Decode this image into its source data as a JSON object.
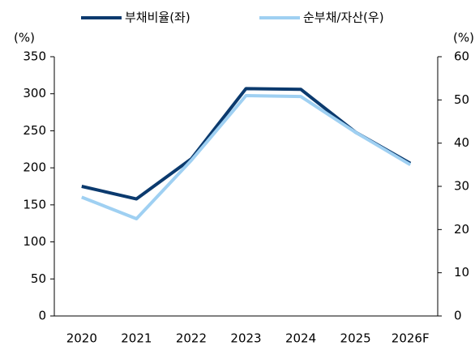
{
  "chart_data": {
    "type": "line",
    "categories": [
      "2020",
      "2021",
      "2022",
      "2023",
      "2024",
      "2025",
      "2026F"
    ],
    "series": [
      {
        "name": "부채비율(좌)",
        "color": "#0b3a6e",
        "values": [
          175,
          158,
          212,
          307,
          306,
          248,
          206
        ]
      },
      {
        "name": "순부채/자산(우)",
        "color": "#9fd0f2",
        "axis": "y2",
        "values": [
          27.5,
          22.5,
          36,
          51,
          50.8,
          42.5,
          35
        ]
      }
    ],
    "ylabel": "(%)",
    "y2label": "(%)",
    "ylim": [
      0,
      350
    ],
    "yticks": [
      0,
      50,
      100,
      150,
      200,
      250,
      300,
      350
    ],
    "y2lim": [
      0,
      60
    ],
    "y2ticks": [
      0,
      10,
      20,
      30,
      40,
      50,
      60
    ],
    "legend": "top"
  }
}
